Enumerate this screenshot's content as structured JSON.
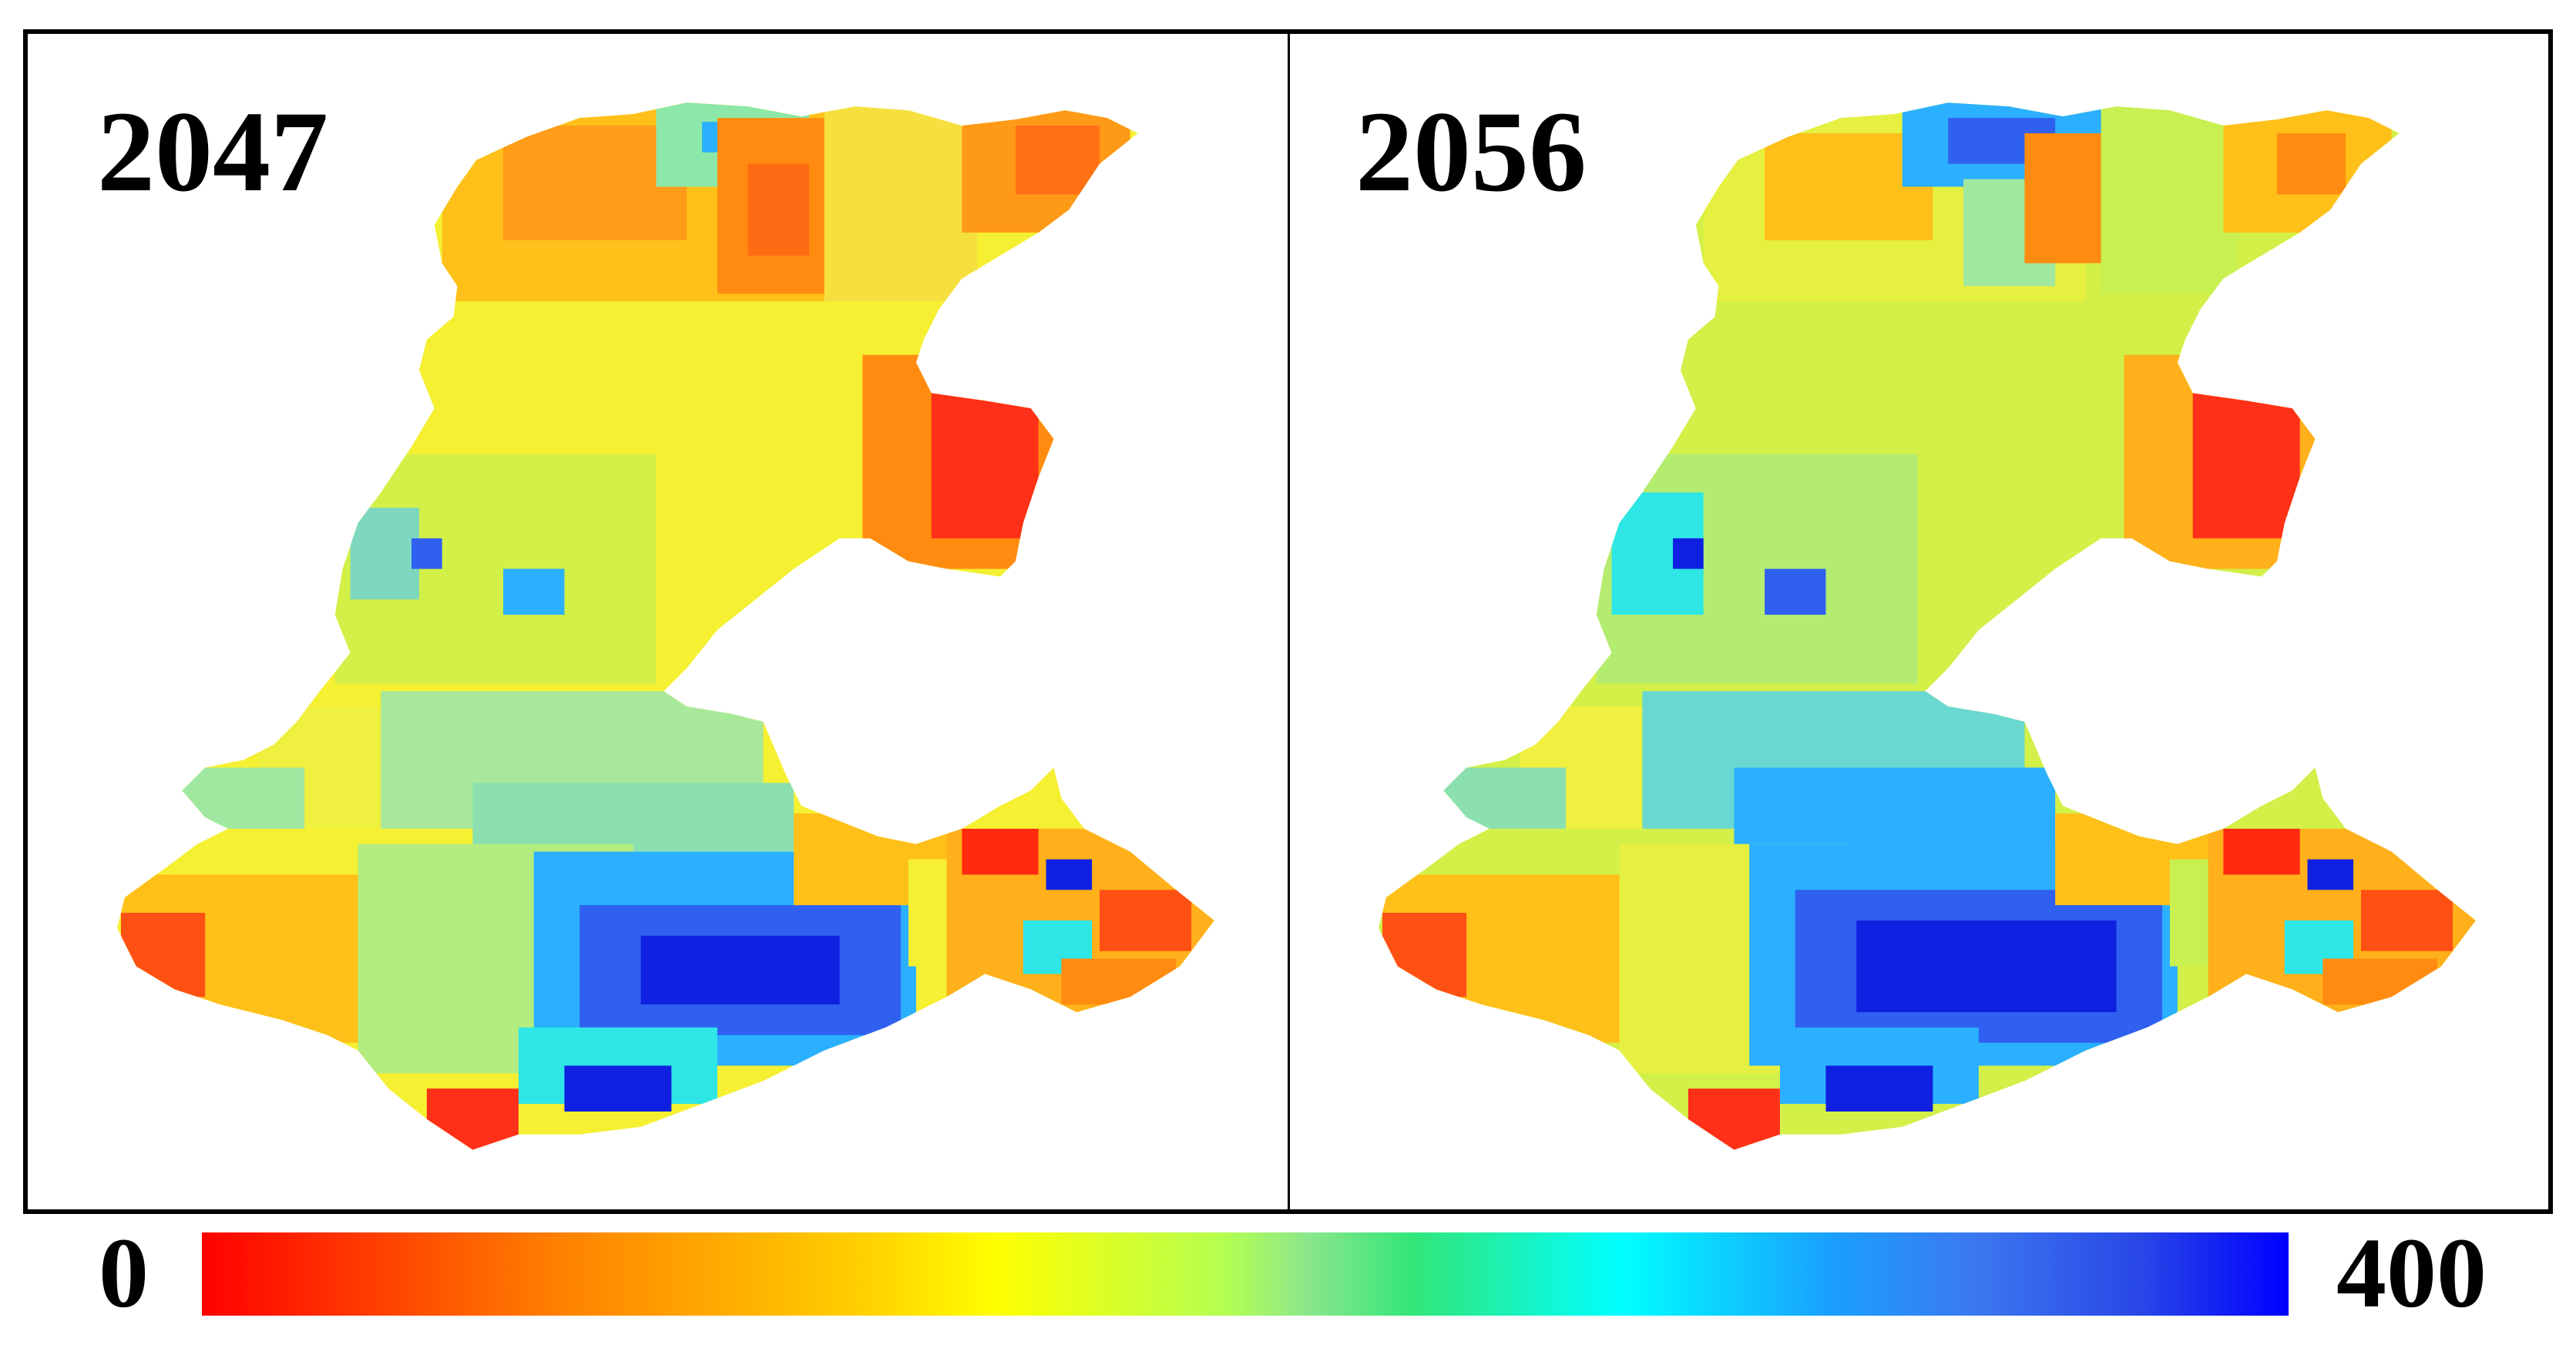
{
  "panels": [
    {
      "year": "2047"
    },
    {
      "year": "2056"
    }
  ],
  "colorbar": {
    "min_label": "0",
    "max_label": "400",
    "colors": [
      "#ff0000",
      "#ff8000",
      "#ffd200",
      "#ffff00",
      "#b4ff50",
      "#8ce68c",
      "#32e678",
      "#00ffff",
      "#19a0ff",
      "#3c78f0",
      "#2846e6",
      "#0000ff"
    ]
  },
  "map_colors": {
    "red": "#ff2a10",
    "orange": "#ff8c10",
    "amber": "#ffc01a",
    "yellow": "#f5f032",
    "yellow_green": "#c8f050",
    "light_green": "#a0e890",
    "cyan": "#2ee6e6",
    "sky_blue": "#2ab0ff",
    "blue": "#3060f0",
    "deep_blue": "#1020e0"
  }
}
